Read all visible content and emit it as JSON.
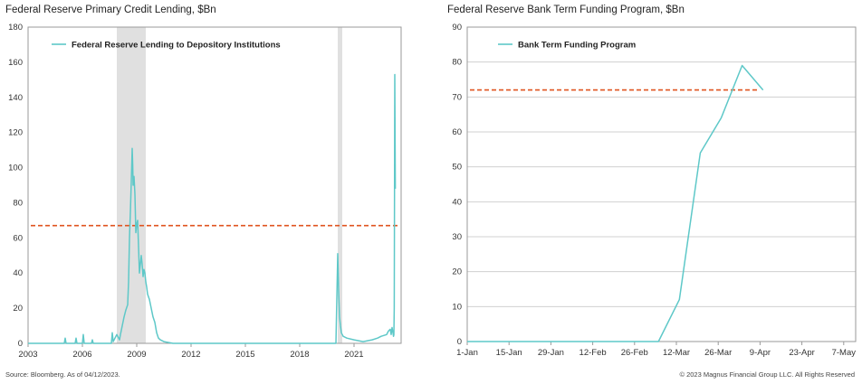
{
  "source": "Source: Bloomberg. As of 04/12/2023.",
  "copyright": "© 2023 Magnus Financial Group LLC. All Rights Reserved",
  "colors": {
    "line": "#5ec8c8",
    "ref": "#e0531f",
    "shade": "#e0e0e0",
    "grid": "#d0d0d0"
  },
  "chart_data": [
    {
      "type": "line",
      "title": "Federal Reserve Primary Credit Lending, $Bn",
      "xlabel": "",
      "ylabel": "",
      "xlim": [
        2003,
        2023.6
      ],
      "ylim": [
        0,
        180
      ],
      "yticks": [
        0,
        20,
        40,
        60,
        80,
        100,
        120,
        140,
        160,
        180
      ],
      "xticks": [
        2003,
        2006,
        2009,
        2012,
        2015,
        2018,
        2021
      ],
      "grid": false,
      "legend_position": "top-left",
      "reference_line": 67,
      "shaded_periods": [
        [
          2007.9,
          2009.5
        ],
        [
          2020.1,
          2020.35
        ]
      ],
      "series": [
        {
          "name": "Federal Reserve Lending to Depository Institutions",
          "x": [
            2003,
            2005.0,
            2005.05,
            2005.1,
            2005.6,
            2005.65,
            2005.7,
            2006.0,
            2006.05,
            2006.1,
            2006.5,
            2006.55,
            2006.6,
            2007.0,
            2007.6,
            2007.65,
            2007.7,
            2007.8,
            2007.9,
            2008.0,
            2008.05,
            2008.1,
            2008.2,
            2008.3,
            2008.4,
            2008.5,
            2008.55,
            2008.6,
            2008.65,
            2008.7,
            2008.75,
            2008.78,
            2008.8,
            2008.85,
            2008.9,
            2008.95,
            2009.0,
            2009.05,
            2009.1,
            2009.15,
            2009.2,
            2009.25,
            2009.3,
            2009.35,
            2009.4,
            2009.45,
            2009.5,
            2009.55,
            2009.6,
            2009.7,
            2009.8,
            2009.9,
            2010.0,
            2010.1,
            2010.2,
            2010.3,
            2010.5,
            2011.0,
            2013,
            2015,
            2017,
            2019,
            2020.0,
            2020.1,
            2020.15,
            2020.2,
            2020.25,
            2020.3,
            2020.4,
            2020.6,
            2021.0,
            2021.5,
            2022.0,
            2022.3,
            2022.5,
            2022.8,
            2022.9,
            2023.0,
            2023.05,
            2023.1,
            2023.15,
            2023.18,
            2023.2,
            2023.22,
            2023.25,
            2023.28
          ],
          "values": [
            0,
            0,
            3,
            0,
            0,
            3,
            0,
            0,
            5,
            0,
            0,
            2,
            0,
            0,
            0,
            6,
            1,
            3,
            5,
            3,
            2,
            5,
            10,
            15,
            19,
            22,
            35,
            60,
            75,
            92,
            111,
            101,
            90,
            95,
            85,
            63,
            68,
            70,
            55,
            40,
            45,
            50,
            45,
            38,
            42,
            40,
            35,
            32,
            28,
            25,
            20,
            15,
            12,
            6,
            3,
            2,
            1,
            0,
            0,
            0,
            0,
            0,
            0,
            51,
            30,
            15,
            10,
            6,
            4,
            3,
            2,
            1,
            2,
            3,
            4,
            5,
            7,
            8,
            5,
            9,
            6,
            4,
            5,
            20,
            153,
            88
          ]
        }
      ]
    },
    {
      "type": "line",
      "title": "Federal Reserve Bank Term Funding Program, $Bn",
      "xlabel": "",
      "ylabel": "",
      "xlim": [
        0,
        130
      ],
      "ylim": [
        0,
        90
      ],
      "yticks": [
        0,
        10,
        20,
        30,
        40,
        50,
        60,
        70,
        80,
        90
      ],
      "xticks": [
        {
          "v": 0,
          "label": "1-Jan"
        },
        {
          "v": 14,
          "label": "15-Jan"
        },
        {
          "v": 28,
          "label": "29-Jan"
        },
        {
          "v": 42,
          "label": "12-Feb"
        },
        {
          "v": 56,
          "label": "26-Feb"
        },
        {
          "v": 70,
          "label": "12-Mar"
        },
        {
          "v": 84,
          "label": "26-Mar"
        },
        {
          "v": 98,
          "label": "9-Apr"
        },
        {
          "v": 112,
          "label": "23-Apr"
        },
        {
          "v": 126,
          "label": "7-May"
        }
      ],
      "grid": true,
      "legend_position": "top-left",
      "reference_line": 72,
      "series": [
        {
          "name": "Bank Term Funding Program",
          "x": [
            0,
            14,
            28,
            42,
            56,
            64,
            71,
            78,
            85,
            92,
            99
          ],
          "values": [
            0,
            0,
            0,
            0,
            0,
            0,
            12,
            54,
            64,
            79,
            72
          ]
        }
      ]
    }
  ]
}
